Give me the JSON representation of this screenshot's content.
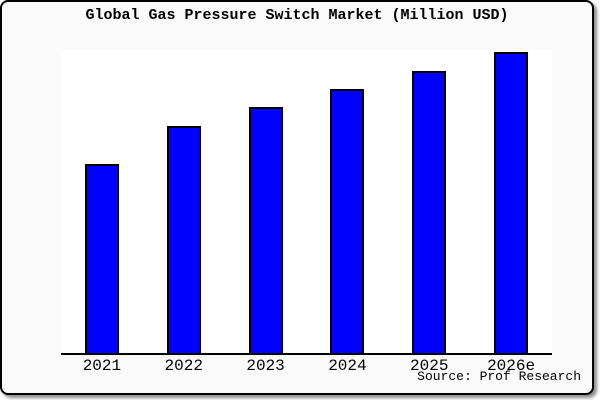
{
  "window": {
    "background": "#fafafa",
    "border_color": "#000000",
    "plot_background": "#ffffff"
  },
  "chart_data": {
    "type": "bar",
    "title": "Global Gas Pressure Switch Market (Million USD)",
    "categories": [
      "2021",
      "2022",
      "2023",
      "2024",
      "2025",
      "2026e"
    ],
    "values": [
      189,
      227,
      246,
      264,
      282,
      301
    ],
    "values_note": "no y-axis or data labels shown; values are relative bar heights estimated in pixels",
    "ylim": [
      0,
      303
    ],
    "xlabel": "",
    "ylabel": "",
    "grid": false,
    "legend": null,
    "y_axis_shown": false,
    "bar_color": "#0000ff",
    "bar_border_color": "#000000",
    "source_note": "Source: Prof Research"
  }
}
